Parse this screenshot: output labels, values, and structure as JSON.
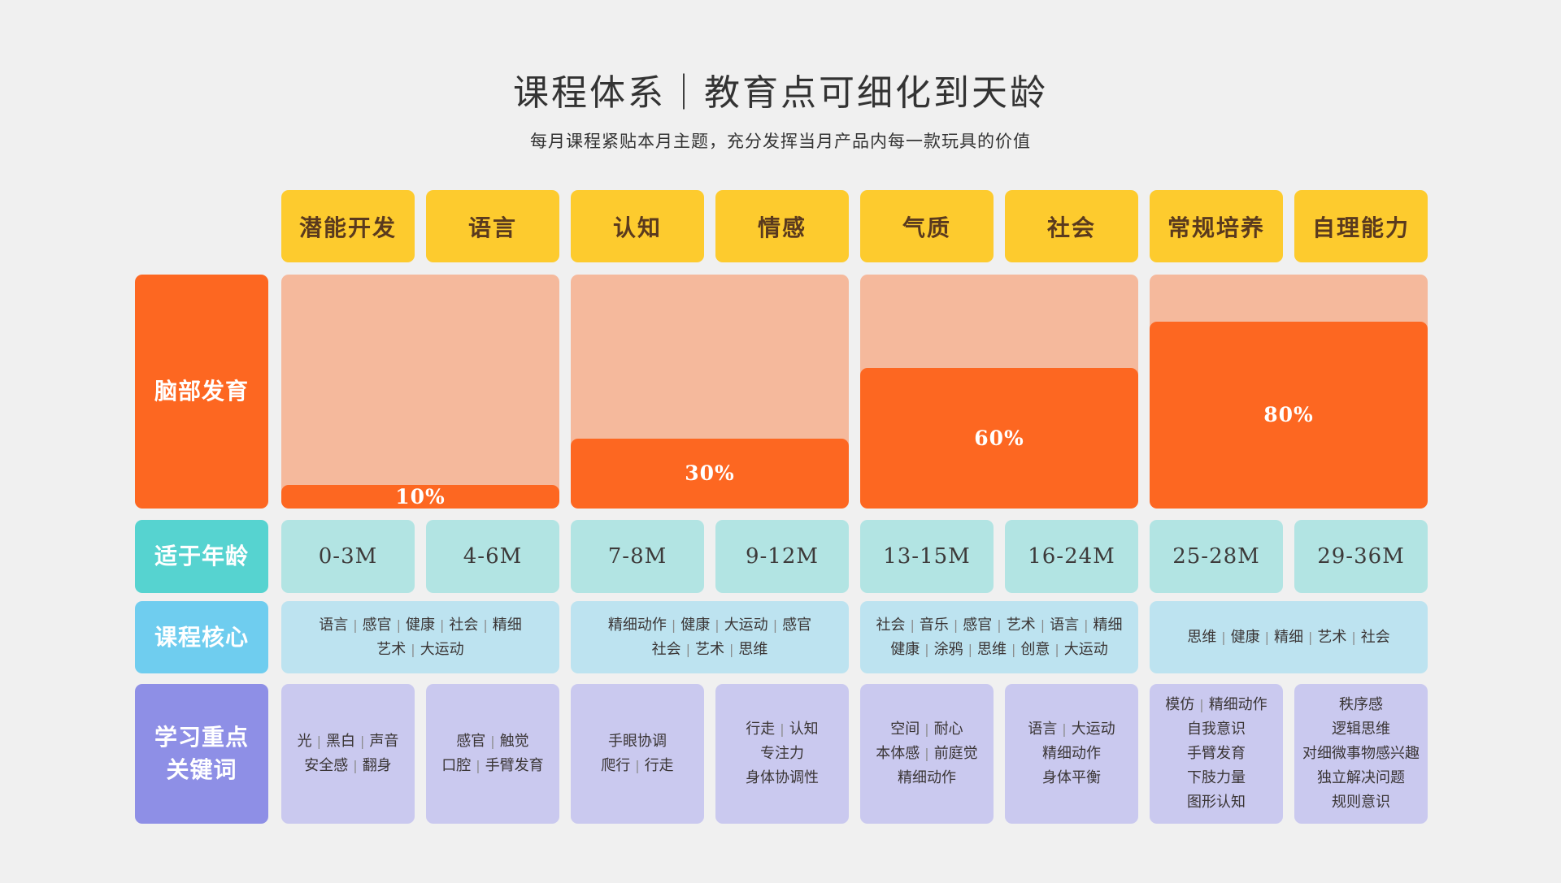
{
  "header": {
    "title": "课程体系｜教育点可细化到天龄",
    "subtitle": "每月课程紧贴本月主题，充分发挥当月产品内每一款玩具的价值"
  },
  "columns": [
    "潜能开发",
    "语言",
    "认知",
    "情感",
    "气质",
    "社会",
    "常规培养",
    "自理能力"
  ],
  "row_labels": {
    "brain": "脑部发育",
    "age": "适于年龄",
    "core": "课程核心",
    "keywords": [
      "学习重点",
      "关键词"
    ]
  },
  "brain": [
    {
      "value": 10,
      "label": "10%"
    },
    {
      "value": 30,
      "label": "30%"
    },
    {
      "value": 60,
      "label": "60%"
    },
    {
      "value": 80,
      "label": "80%"
    }
  ],
  "ages": [
    "0-3M",
    "4-6M",
    "7-8M",
    "9-12M",
    "13-15M",
    "16-24M",
    "25-28M",
    "29-36M"
  ],
  "core": [
    [
      [
        "语言",
        "感官",
        "健康",
        "社会",
        "精细"
      ],
      [
        "艺术",
        "大运动"
      ]
    ],
    [
      [
        "精细动作",
        "健康",
        "大运动",
        "感官"
      ],
      [
        "社会",
        "艺术",
        "思维"
      ]
    ],
    [
      [
        "社会",
        "音乐",
        "感官",
        "艺术",
        "语言",
        "精细"
      ],
      [
        "健康",
        "涂鸦",
        "思维",
        "创意",
        "大运动"
      ]
    ],
    [
      [
        "思维",
        "健康",
        "精细",
        "艺术",
        "社会"
      ]
    ]
  ],
  "keywords": [
    [
      [
        "光",
        "黑白",
        "声音"
      ],
      [
        "安全感",
        "翻身"
      ]
    ],
    [
      [
        "感官",
        "触觉"
      ],
      [
        "口腔",
        "手臂发育"
      ]
    ],
    [
      [
        "手眼协调"
      ],
      [
        "爬行",
        "行走"
      ]
    ],
    [
      [
        "行走",
        "认知"
      ],
      [
        "专注力"
      ],
      [
        "身体协调性"
      ]
    ],
    [
      [
        "空间",
        "耐心"
      ],
      [
        "本体感",
        "前庭觉"
      ],
      [
        "精细动作"
      ]
    ],
    [
      [
        "语言",
        "大运动"
      ],
      [
        "精细动作"
      ],
      [
        "身体平衡"
      ]
    ],
    [
      [
        "模仿",
        "精细动作"
      ],
      [
        "自我意识"
      ],
      [
        "手臂发育"
      ],
      [
        "下肢力量"
      ],
      [
        "图形认知"
      ]
    ],
    [
      [
        "秩序感"
      ],
      [
        "逻辑思维"
      ],
      [
        "对细微事物感兴趣"
      ],
      [
        "独立解决问题"
      ],
      [
        "规则意识"
      ]
    ]
  ]
}
